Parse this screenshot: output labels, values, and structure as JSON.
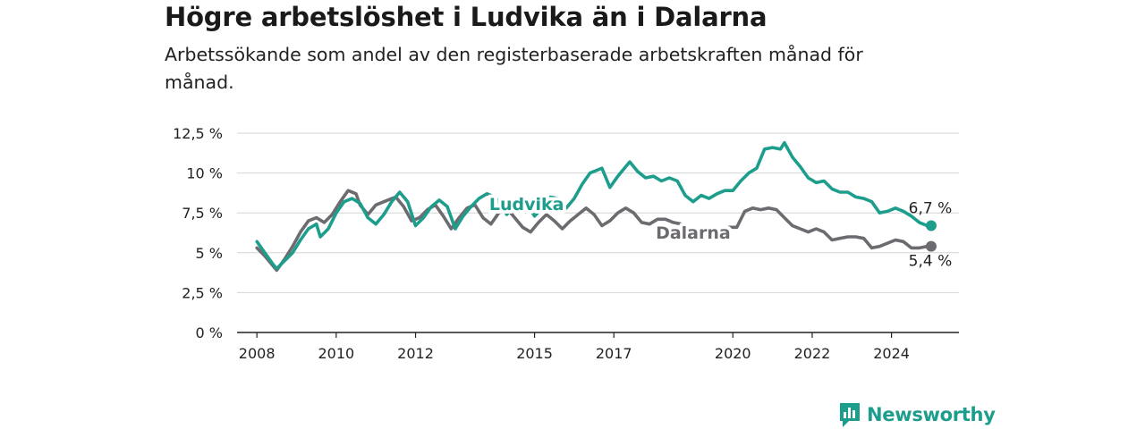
{
  "header": {
    "title": "Högre arbetslöshet i Ludvika än i Dalarna",
    "subtitle": "Arbetssökande som andel av den registerbaserade arbetskraften månad för månad."
  },
  "brand": {
    "name": "Newsworthy",
    "icon": "newsworthy-logo-icon",
    "color": "#1d9e8d"
  },
  "chart_data": {
    "type": "line",
    "title": "Högre arbetslöshet i Ludvika än i Dalarna",
    "subtitle": "Arbetssökande som andel av den registerbaserade arbetskraften månad för månad.",
    "xlabel": "",
    "ylabel": "",
    "ylim": [
      0,
      12.5
    ],
    "xlim": [
      2007.5,
      2025.7
    ],
    "y_ticks": [
      0,
      2.5,
      5,
      7.5,
      10,
      12.5
    ],
    "y_tick_labels": [
      "0 %",
      "2,5 %",
      "5 %",
      "7,5 %",
      "10 %",
      "12,5 %"
    ],
    "x_ticks": [
      2008,
      2010,
      2012,
      2015,
      2017,
      2020,
      2022,
      2024
    ],
    "x_tick_labels": [
      "2008",
      "2010",
      "2012",
      "2015",
      "2017",
      "2020",
      "2022",
      "2024"
    ],
    "grid": "horizontal",
    "series": [
      {
        "name": "Ludvika",
        "color": "#1d9e8d",
        "end_label": "6,7 %",
        "points": [
          [
            2008.0,
            5.7
          ],
          [
            2008.2,
            5.0
          ],
          [
            2008.4,
            4.3
          ],
          [
            2008.5,
            4.0
          ],
          [
            2008.7,
            4.5
          ],
          [
            2008.9,
            5.0
          ],
          [
            2009.1,
            5.8
          ],
          [
            2009.3,
            6.5
          ],
          [
            2009.5,
            6.8
          ],
          [
            2009.6,
            6.0
          ],
          [
            2009.8,
            6.5
          ],
          [
            2010.0,
            7.5
          ],
          [
            2010.2,
            8.2
          ],
          [
            2010.4,
            8.4
          ],
          [
            2010.6,
            8.1
          ],
          [
            2010.8,
            7.2
          ],
          [
            2011.0,
            6.8
          ],
          [
            2011.2,
            7.4
          ],
          [
            2011.4,
            8.2
          ],
          [
            2011.6,
            8.8
          ],
          [
            2011.8,
            8.2
          ],
          [
            2012.0,
            6.7
          ],
          [
            2012.2,
            7.2
          ],
          [
            2012.4,
            7.9
          ],
          [
            2012.6,
            8.3
          ],
          [
            2012.8,
            7.9
          ],
          [
            2013.0,
            6.5
          ],
          [
            2013.2,
            7.3
          ],
          [
            2013.4,
            7.9
          ],
          [
            2013.6,
            8.4
          ],
          [
            2013.8,
            8.7
          ],
          [
            2014.0,
            8.5
          ],
          [
            2014.3,
            7.4
          ],
          [
            2014.6,
            8.4
          ],
          [
            2014.8,
            8.1
          ],
          [
            2015.0,
            7.3
          ],
          [
            2015.2,
            7.8
          ],
          [
            2015.4,
            8.5
          ],
          [
            2015.6,
            8.4
          ],
          [
            2015.8,
            7.8
          ],
          [
            2016.0,
            8.4
          ],
          [
            2016.2,
            9.3
          ],
          [
            2016.4,
            10.0
          ],
          [
            2016.6,
            10.2
          ],
          [
            2016.7,
            10.3
          ],
          [
            2016.9,
            9.1
          ],
          [
            2017.1,
            9.8
          ],
          [
            2017.3,
            10.4
          ],
          [
            2017.4,
            10.7
          ],
          [
            2017.6,
            10.1
          ],
          [
            2017.8,
            9.7
          ],
          [
            2018.0,
            9.8
          ],
          [
            2018.2,
            9.5
          ],
          [
            2018.4,
            9.7
          ],
          [
            2018.6,
            9.5
          ],
          [
            2018.8,
            8.6
          ],
          [
            2019.0,
            8.2
          ],
          [
            2019.2,
            8.6
          ],
          [
            2019.4,
            8.4
          ],
          [
            2019.6,
            8.7
          ],
          [
            2019.8,
            8.9
          ],
          [
            2020.0,
            8.9
          ],
          [
            2020.2,
            9.5
          ],
          [
            2020.4,
            10.0
          ],
          [
            2020.6,
            10.3
          ],
          [
            2020.8,
            11.5
          ],
          [
            2021.0,
            11.6
          ],
          [
            2021.2,
            11.5
          ],
          [
            2021.3,
            11.9
          ],
          [
            2021.5,
            11.0
          ],
          [
            2021.7,
            10.4
          ],
          [
            2021.9,
            9.7
          ],
          [
            2022.1,
            9.4
          ],
          [
            2022.3,
            9.5
          ],
          [
            2022.5,
            9.0
          ],
          [
            2022.7,
            8.8
          ],
          [
            2022.9,
            8.8
          ],
          [
            2023.1,
            8.5
          ],
          [
            2023.3,
            8.4
          ],
          [
            2023.5,
            8.2
          ],
          [
            2023.7,
            7.5
          ],
          [
            2023.9,
            7.6
          ],
          [
            2024.1,
            7.8
          ],
          [
            2024.3,
            7.6
          ],
          [
            2024.5,
            7.3
          ],
          [
            2024.7,
            6.9
          ],
          [
            2024.9,
            6.7
          ],
          [
            2025.0,
            6.7
          ]
        ]
      },
      {
        "name": "Dalarna",
        "color": "#6e6b70",
        "end_label": "5,4 %",
        "points": [
          [
            2008.0,
            5.3
          ],
          [
            2008.2,
            4.8
          ],
          [
            2008.4,
            4.2
          ],
          [
            2008.5,
            3.9
          ],
          [
            2008.7,
            4.6
          ],
          [
            2008.9,
            5.4
          ],
          [
            2009.1,
            6.3
          ],
          [
            2009.3,
            7.0
          ],
          [
            2009.5,
            7.2
          ],
          [
            2009.7,
            6.9
          ],
          [
            2009.9,
            7.4
          ],
          [
            2010.1,
            8.2
          ],
          [
            2010.3,
            8.9
          ],
          [
            2010.5,
            8.7
          ],
          [
            2010.6,
            8.0
          ],
          [
            2010.8,
            7.4
          ],
          [
            2011.0,
            8.0
          ],
          [
            2011.3,
            8.3
          ],
          [
            2011.5,
            8.5
          ],
          [
            2011.7,
            7.9
          ],
          [
            2011.9,
            7.0
          ],
          [
            2012.1,
            7.2
          ],
          [
            2012.3,
            7.7
          ],
          [
            2012.5,
            8.0
          ],
          [
            2012.7,
            7.3
          ],
          [
            2012.9,
            6.5
          ],
          [
            2013.1,
            7.2
          ],
          [
            2013.3,
            7.8
          ],
          [
            2013.5,
            8.0
          ],
          [
            2013.7,
            7.2
          ],
          [
            2013.9,
            6.8
          ],
          [
            2014.1,
            7.5
          ],
          [
            2014.3,
            7.8
          ],
          [
            2014.5,
            7.2
          ],
          [
            2014.7,
            6.6
          ],
          [
            2014.9,
            6.3
          ],
          [
            2015.1,
            6.9
          ],
          [
            2015.3,
            7.4
          ],
          [
            2015.5,
            7.0
          ],
          [
            2015.7,
            6.5
          ],
          [
            2015.9,
            7.0
          ],
          [
            2016.1,
            7.4
          ],
          [
            2016.3,
            7.8
          ],
          [
            2016.5,
            7.4
          ],
          [
            2016.7,
            6.7
          ],
          [
            2016.9,
            7.0
          ],
          [
            2017.1,
            7.5
          ],
          [
            2017.3,
            7.8
          ],
          [
            2017.5,
            7.5
          ],
          [
            2017.7,
            6.9
          ],
          [
            2017.9,
            6.8
          ],
          [
            2018.1,
            7.1
          ],
          [
            2018.3,
            7.1
          ],
          [
            2018.5,
            6.9
          ],
          [
            2018.7,
            6.8
          ],
          [
            2019.0,
            6.4
          ],
          [
            2019.3,
            6.3
          ],
          [
            2019.6,
            6.5
          ],
          [
            2019.9,
            6.6
          ],
          [
            2020.1,
            6.6
          ],
          [
            2020.3,
            7.6
          ],
          [
            2020.5,
            7.8
          ],
          [
            2020.7,
            7.7
          ],
          [
            2020.9,
            7.8
          ],
          [
            2021.1,
            7.7
          ],
          [
            2021.3,
            7.2
          ],
          [
            2021.5,
            6.7
          ],
          [
            2021.7,
            6.5
          ],
          [
            2021.9,
            6.3
          ],
          [
            2022.1,
            6.5
          ],
          [
            2022.3,
            6.3
          ],
          [
            2022.5,
            5.8
          ],
          [
            2022.7,
            5.9
          ],
          [
            2022.9,
            6.0
          ],
          [
            2023.1,
            6.0
          ],
          [
            2023.3,
            5.9
          ],
          [
            2023.5,
            5.3
          ],
          [
            2023.7,
            5.4
          ],
          [
            2023.9,
            5.6
          ],
          [
            2024.1,
            5.8
          ],
          [
            2024.3,
            5.7
          ],
          [
            2024.5,
            5.3
          ],
          [
            2024.7,
            5.3
          ],
          [
            2024.9,
            5.4
          ],
          [
            2025.0,
            5.4
          ]
        ]
      }
    ]
  }
}
